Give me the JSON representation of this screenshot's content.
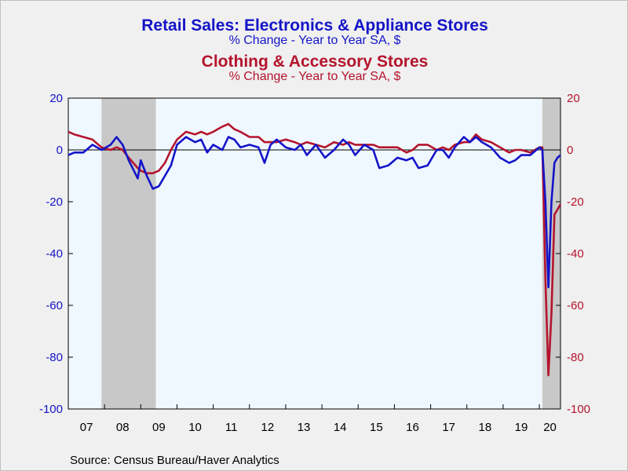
{
  "title": {
    "series1": "Retail Sales: Electronics & Appliance Stores",
    "series1_sub": "% Change - Year to Year    SA, $",
    "series2": "Clothing & Accessory Stores",
    "series2_sub": "% Change - Year to Year    SA, $"
  },
  "source": "Source:  Census Bureau/Haver Analytics",
  "colors": {
    "series1": "#1414c8",
    "series2": "#b4142d",
    "plot_bg": "#f0f8ff",
    "recession": "#c8c8c8",
    "frame_bg": "#f0f0f0"
  },
  "chart_data": {
    "type": "line",
    "x_start": "2007-01",
    "x_end": "2020-08",
    "x_tick_labels": [
      "07",
      "08",
      "09",
      "10",
      "11",
      "12",
      "13",
      "14",
      "15",
      "16",
      "17",
      "18",
      "19",
      "20"
    ],
    "ylim": [
      -100,
      20
    ],
    "y_ticks": [
      20,
      0,
      -20,
      -40,
      -60,
      -80,
      -100
    ],
    "y_axis_left_color": "series1",
    "y_axis_right_color": "series2",
    "zero_line": true,
    "grid": false,
    "recessions": [
      {
        "start": "2007-12",
        "end": "2009-06"
      },
      {
        "start": "2020-02",
        "end": "2020-08"
      }
    ],
    "series": [
      {
        "name": "Retail Sales: Electronics & Appliance Stores",
        "axis": "left",
        "points": [
          [
            "2007-01",
            -2
          ],
          [
            "2007-03",
            -1
          ],
          [
            "2007-06",
            -1
          ],
          [
            "2007-09",
            2
          ],
          [
            "2007-12",
            0
          ],
          [
            "2008-03",
            2
          ],
          [
            "2008-05",
            5
          ],
          [
            "2008-07",
            2
          ],
          [
            "2008-09",
            -4
          ],
          [
            "2008-12",
            -11
          ],
          [
            "2009-01",
            -4
          ],
          [
            "2009-03",
            -10
          ],
          [
            "2009-05",
            -15
          ],
          [
            "2009-07",
            -14
          ],
          [
            "2009-09",
            -10
          ],
          [
            "2009-11",
            -6
          ],
          [
            "2010-01",
            2
          ],
          [
            "2010-04",
            5
          ],
          [
            "2010-07",
            3
          ],
          [
            "2010-09",
            4
          ],
          [
            "2010-11",
            -1
          ],
          [
            "2011-01",
            2
          ],
          [
            "2011-04",
            0
          ],
          [
            "2011-06",
            5
          ],
          [
            "2011-08",
            4
          ],
          [
            "2011-10",
            1
          ],
          [
            "2012-01",
            2
          ],
          [
            "2012-04",
            1
          ],
          [
            "2012-06",
            -5
          ],
          [
            "2012-08",
            2
          ],
          [
            "2012-10",
            4
          ],
          [
            "2013-01",
            1
          ],
          [
            "2013-04",
            0
          ],
          [
            "2013-06",
            2
          ],
          [
            "2013-08",
            -2
          ],
          [
            "2013-11",
            2
          ],
          [
            "2014-02",
            -3
          ],
          [
            "2014-05",
            0
          ],
          [
            "2014-08",
            4
          ],
          [
            "2014-10",
            2
          ],
          [
            "2014-12",
            -2
          ],
          [
            "2015-03",
            2
          ],
          [
            "2015-06",
            0
          ],
          [
            "2015-08",
            -7
          ],
          [
            "2015-11",
            -6
          ],
          [
            "2016-02",
            -3
          ],
          [
            "2016-05",
            -4
          ],
          [
            "2016-07",
            -3
          ],
          [
            "2016-09",
            -7
          ],
          [
            "2016-12",
            -6
          ],
          [
            "2017-03",
            0
          ],
          [
            "2017-05",
            0
          ],
          [
            "2017-07",
            -3
          ],
          [
            "2017-09",
            1
          ],
          [
            "2017-12",
            5
          ],
          [
            "2018-02",
            3
          ],
          [
            "2018-04",
            5
          ],
          [
            "2018-06",
            3
          ],
          [
            "2018-09",
            1
          ],
          [
            "2018-12",
            -3
          ],
          [
            "2019-03",
            -5
          ],
          [
            "2019-05",
            -4
          ],
          [
            "2019-07",
            -2
          ],
          [
            "2019-10",
            -2
          ],
          [
            "2020-01",
            1
          ],
          [
            "2020-02",
            0
          ],
          [
            "2020-03",
            -20
          ],
          [
            "2020-04",
            -53
          ],
          [
            "2020-05",
            -20
          ],
          [
            "2020-06",
            -5
          ],
          [
            "2020-07",
            -3
          ],
          [
            "2020-08",
            -2
          ]
        ]
      },
      {
        "name": "Clothing & Accessory Stores",
        "axis": "right",
        "points": [
          [
            "2007-01",
            7
          ],
          [
            "2007-03",
            6
          ],
          [
            "2007-06",
            5
          ],
          [
            "2007-09",
            4
          ],
          [
            "2007-12",
            1
          ],
          [
            "2008-03",
            0
          ],
          [
            "2008-05",
            1
          ],
          [
            "2008-07",
            0
          ],
          [
            "2008-09",
            -3
          ],
          [
            "2008-12",
            -7
          ],
          [
            "2009-01",
            -8
          ],
          [
            "2009-03",
            -9
          ],
          [
            "2009-05",
            -9
          ],
          [
            "2009-07",
            -8
          ],
          [
            "2009-09",
            -5
          ],
          [
            "2009-11",
            0
          ],
          [
            "2010-01",
            4
          ],
          [
            "2010-04",
            7
          ],
          [
            "2010-07",
            6
          ],
          [
            "2010-09",
            7
          ],
          [
            "2010-11",
            6
          ],
          [
            "2011-01",
            7
          ],
          [
            "2011-04",
            9
          ],
          [
            "2011-06",
            10
          ],
          [
            "2011-08",
            8
          ],
          [
            "2011-10",
            7
          ],
          [
            "2012-01",
            5
          ],
          [
            "2012-04",
            5
          ],
          [
            "2012-06",
            3
          ],
          [
            "2012-08",
            3
          ],
          [
            "2012-10",
            3
          ],
          [
            "2013-01",
            4
          ],
          [
            "2013-04",
            3
          ],
          [
            "2013-06",
            2
          ],
          [
            "2013-08",
            3
          ],
          [
            "2013-11",
            2
          ],
          [
            "2014-02",
            1
          ],
          [
            "2014-05",
            3
          ],
          [
            "2014-08",
            2
          ],
          [
            "2014-10",
            3
          ],
          [
            "2014-12",
            2
          ],
          [
            "2015-03",
            2
          ],
          [
            "2015-06",
            2
          ],
          [
            "2015-08",
            1
          ],
          [
            "2015-11",
            1
          ],
          [
            "2016-02",
            1
          ],
          [
            "2016-05",
            -1
          ],
          [
            "2016-07",
            0
          ],
          [
            "2016-09",
            2
          ],
          [
            "2016-12",
            2
          ],
          [
            "2017-03",
            0
          ],
          [
            "2017-05",
            1
          ],
          [
            "2017-07",
            0
          ],
          [
            "2017-09",
            2
          ],
          [
            "2017-12",
            3
          ],
          [
            "2018-02",
            3
          ],
          [
            "2018-04",
            6
          ],
          [
            "2018-06",
            4
          ],
          [
            "2018-09",
            3
          ],
          [
            "2018-12",
            1
          ],
          [
            "2019-03",
            -1
          ],
          [
            "2019-05",
            0
          ],
          [
            "2019-07",
            0
          ],
          [
            "2019-10",
            -1
          ],
          [
            "2020-01",
            1
          ],
          [
            "2020-02",
            1
          ],
          [
            "2020-03",
            -50
          ],
          [
            "2020-04",
            -87
          ],
          [
            "2020-05",
            -63
          ],
          [
            "2020-06",
            -25
          ],
          [
            "2020-07",
            -23
          ],
          [
            "2020-08",
            -21
          ]
        ]
      }
    ]
  }
}
